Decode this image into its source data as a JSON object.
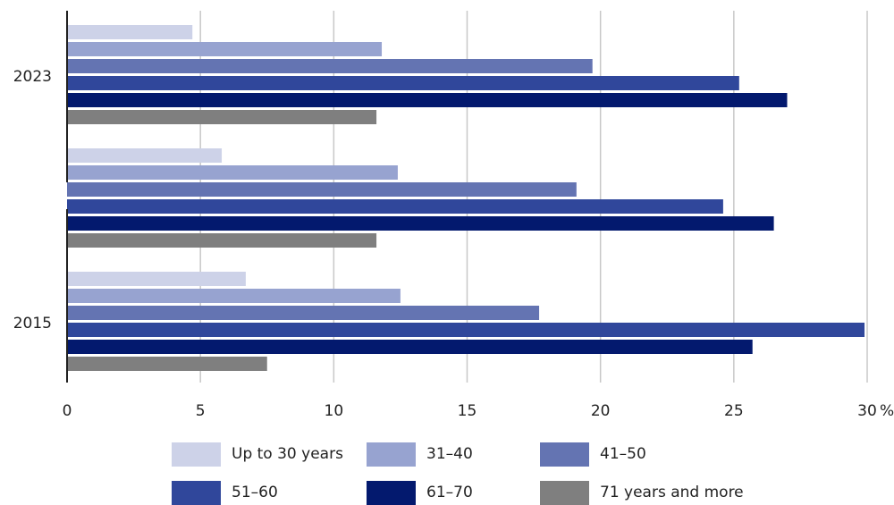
{
  "chart_data": {
    "type": "bar",
    "orientation": "horizontal",
    "categories": [
      "2023",
      "",
      "2015"
    ],
    "series": [
      {
        "name": "Up to 30 years",
        "color": "#cdd2e8",
        "values": [
          4.7,
          5.8,
          6.7
        ]
      },
      {
        "name": "31–40",
        "color": "#97a3d0",
        "values": [
          11.8,
          12.4,
          12.5
        ]
      },
      {
        "name": "41–50",
        "color": "#6474b2",
        "values": [
          19.7,
          19.1,
          17.7
        ]
      },
      {
        "name": "51–60",
        "color": "#30479b",
        "values": [
          25.2,
          24.6,
          29.9
        ]
      },
      {
        "name": "61–70",
        "color": "#03196e",
        "values": [
          27.0,
          26.5,
          25.7
        ]
      },
      {
        "name": "71 years and more",
        "color": "#7f7f7f",
        "values": [
          11.6,
          11.6,
          7.5
        ]
      }
    ],
    "xticks": [
      "0",
      "5",
      "10",
      "15",
      "20",
      "25",
      "30"
    ],
    "xunit": "%",
    "xlim": [
      0,
      30
    ],
    "grid": "vertical",
    "legend": "bottom"
  }
}
